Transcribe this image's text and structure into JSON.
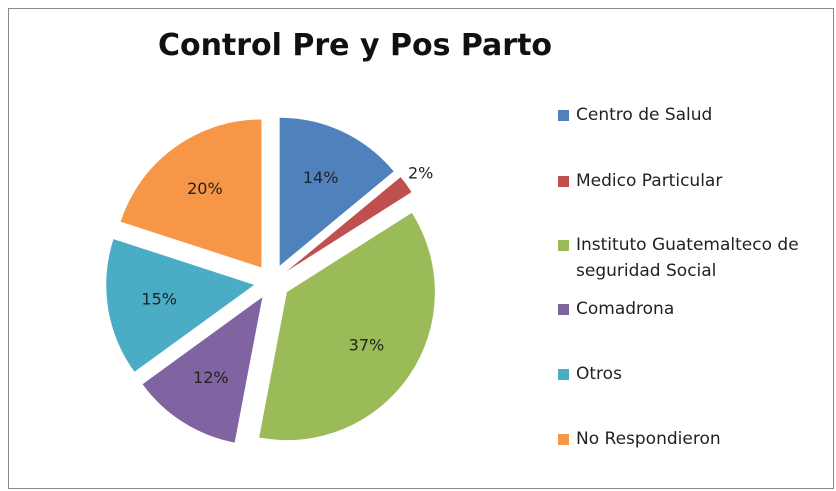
{
  "chart_data": {
    "type": "pie",
    "title": "Control Pre y Pos Parto",
    "categories": [
      "Centro de Salud",
      "Medico Particular",
      "Instituto Guatemalteco de seguridad Social",
      "Comadrona",
      "Otros",
      "No Respondieron"
    ],
    "values": [
      14,
      2,
      37,
      12,
      15,
      20
    ],
    "value_labels": [
      "14%",
      "2%",
      "37%",
      "12%",
      "15%",
      "20%"
    ],
    "colors": [
      "#4f81bd",
      "#c0504d",
      "#9bbb59",
      "#8064a2",
      "#4bacc6",
      "#f79646"
    ],
    "exploded": true
  }
}
